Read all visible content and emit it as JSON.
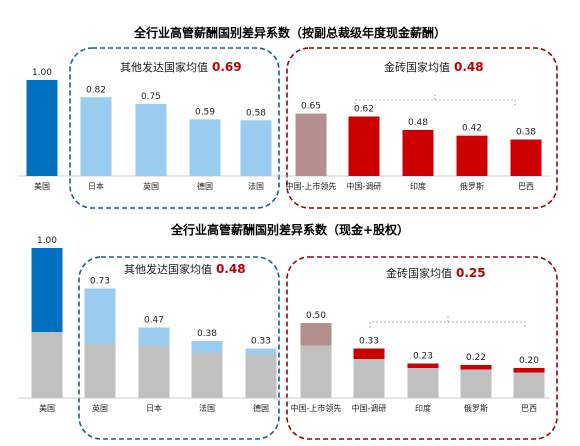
{
  "colors": {
    "us": "#0070c0",
    "developed": "#99ccee",
    "china": "#b58e8e",
    "brics": "#cc0000",
    "grey": "#c0c0c0",
    "blue_dash": "#1f5c99",
    "red_dash": "#a00000"
  },
  "chart_data": [
    {
      "type": "bar",
      "title": "全行业高管薪酬国别差异系数（按副总裁级年度现金薪酬）",
      "categories": [
        "美国",
        "日本",
        "英国",
        "德国",
        "法国",
        "中国-上市领先",
        "中国-调研",
        "印度",
        "俄罗斯",
        "巴西"
      ],
      "values": [
        1.0,
        0.82,
        0.75,
        0.59,
        0.58,
        0.65,
        0.62,
        0.48,
        0.42,
        0.38
      ],
      "labels": [
        "1.00",
        "0.82",
        "0.75",
        "0.59",
        "0.58",
        "0.65",
        "0.62",
        "0.48",
        "0.42",
        "0.38"
      ],
      "groups": [
        {
          "name": "其他发达国家均值",
          "avg": "0.69"
        },
        {
          "name": "金砖国家均值",
          "avg": "0.48"
        }
      ]
    },
    {
      "type": "bar",
      "stacked": true,
      "title": "全行业高管薪酬国别差异系数（现金+股权）",
      "categories": [
        "美国",
        "英国",
        "日本",
        "法国",
        "德国",
        "中国-上市领先",
        "中国-调研",
        "印度",
        "俄罗斯",
        "巴西"
      ],
      "values": [
        1.0,
        0.73,
        0.47,
        0.38,
        0.33,
        0.5,
        0.33,
        0.23,
        0.22,
        0.2
      ],
      "labels": [
        "1.00",
        "0.73",
        "0.47",
        "0.38",
        "0.33",
        "0.50",
        "0.33",
        "0.23",
        "0.22",
        "0.20"
      ],
      "base_values": [
        0.44,
        0.36,
        0.35,
        0.3,
        0.29,
        0.35,
        0.26,
        0.2,
        0.19,
        0.17
      ],
      "groups": [
        {
          "name": "其他发达国家均值",
          "avg": "0.48"
        },
        {
          "name": "金砖国家均值",
          "avg": "0.25"
        }
      ]
    }
  ]
}
